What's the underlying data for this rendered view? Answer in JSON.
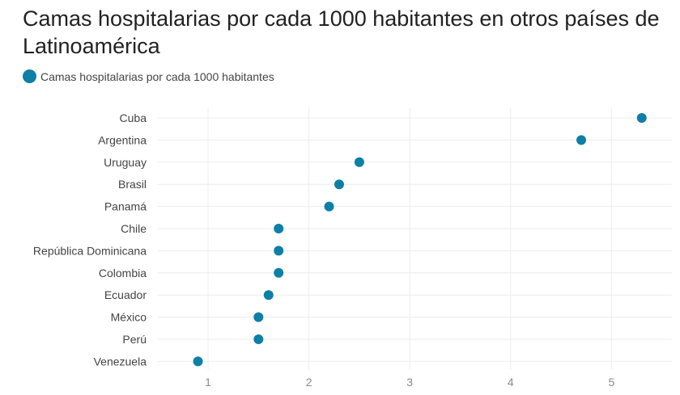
{
  "title": "Camas hospitalarias por cada 1000 habitantes en otros países de Latinoamérica",
  "legend": {
    "label": "Camas hospitalarias por cada 1000 habitantes",
    "color": "#0e7fa6"
  },
  "chart_data": {
    "type": "scatter",
    "title": "Camas hospitalarias por cada 1000 habitantes en otros países de Latinoamérica",
    "categories": [
      "Cuba",
      "Argentina",
      "Uruguay",
      "Brasil",
      "Panamá",
      "Chile",
      "República Dominicana",
      "Colombia",
      "Ecuador",
      "México",
      "Perú",
      "Venezuela"
    ],
    "series": [
      {
        "name": "Camas hospitalarias por cada 1000 habitantes",
        "color": "#0e7fa6",
        "values": [
          5.3,
          4.7,
          2.5,
          2.3,
          2.2,
          1.7,
          1.7,
          1.7,
          1.6,
          1.5,
          1.5,
          0.9
        ]
      }
    ],
    "x_ticks": [
      1,
      2,
      3,
      4,
      5
    ],
    "xlim": [
      0.4,
      5.6
    ],
    "grid": true,
    "legend_position": "top-left"
  }
}
